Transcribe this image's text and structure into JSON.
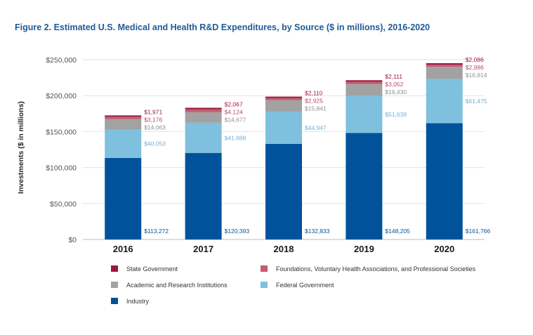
{
  "chart_data": {
    "type": "bar",
    "stacked": true,
    "title": "Figure 2. Estimated U.S. Medical and Health R&D Expenditures, by Source ($ in millions), 2016-2020",
    "ylabel": "Investments ($ in millions)",
    "xlabel": "",
    "ylim": [
      0,
      250000
    ],
    "yticks": [
      0,
      50000,
      100000,
      150000,
      200000,
      250000
    ],
    "ytick_labels": [
      "$0",
      "$50,000",
      "$100,000",
      "$150,000",
      "$200,000",
      "$250,000"
    ],
    "grid": true,
    "legend_position": "bottom",
    "categories": [
      "2016",
      "2017",
      "2018",
      "2019",
      "2020"
    ],
    "series": [
      {
        "name": "Industry",
        "color": "#00539b",
        "label_color": "#00539b",
        "values": [
          113272,
          120393,
          132833,
          148205,
          161766
        ],
        "labels": [
          "$113,272",
          "$120,393",
          "$132,833",
          "$148,205",
          "$161,766"
        ]
      },
      {
        "name": "Federal Government",
        "color": "#7ec0de",
        "label_color": "#6fb3d6",
        "values": [
          40053,
          41888,
          44947,
          51639,
          61475
        ],
        "labels": [
          "$40,053",
          "$41,888",
          "$44,947",
          "$51,639",
          "$61,475"
        ]
      },
      {
        "name": "Academic and Research Institutions",
        "color": "#a2a2a2",
        "label_color": "#8f8f8f",
        "values": [
          14063,
          14677,
          15841,
          16430,
          16814
        ],
        "labels": [
          "$14,063",
          "$14,677",
          "$15,841",
          "$16,430",
          "$16,814"
        ]
      },
      {
        "name": "Foundations, Voluntary Health Associations, and Professional Societies",
        "color": "#c45c72",
        "label_color": "#b94b62",
        "values": [
          3176,
          4124,
          2925,
          3052,
          2986
        ],
        "labels": [
          "$3,176",
          "$4,124",
          "$2,925",
          "$3,052",
          "$2,986"
        ]
      },
      {
        "name": "State Government",
        "color": "#9b1b3c",
        "label_color": "#9b1b3c",
        "values": [
          1971,
          2067,
          2110,
          2111,
          2086
        ],
        "labels": [
          "$1,971",
          "$2,067",
          "$2,110",
          "$2,111",
          "$2,086"
        ]
      }
    ],
    "legend_order": [
      "State Government",
      "Foundations, Voluntary Health Associations, and Professional Societies",
      "Academic and Research Institutions",
      "Federal Government",
      "Industry"
    ]
  }
}
